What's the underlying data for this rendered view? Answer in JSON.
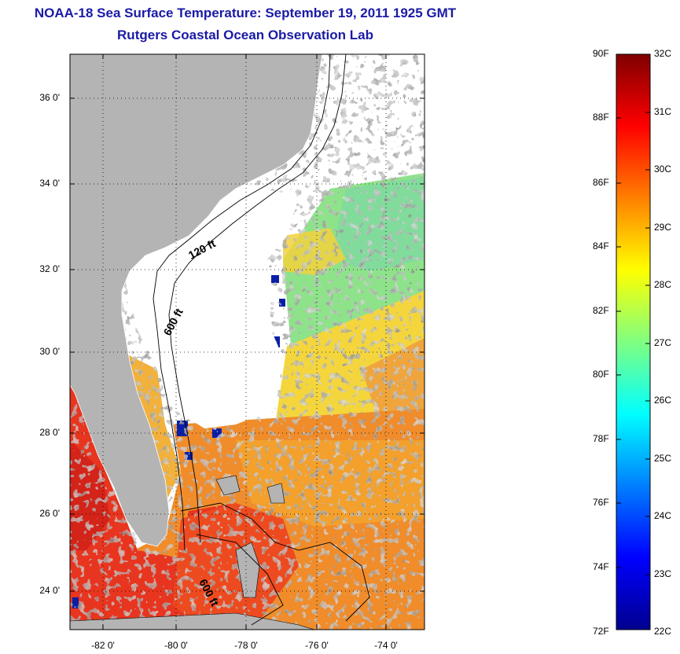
{
  "title": {
    "line1": "NOAA-18 Sea Surface Temperature:  September 19, 2011 1925 GMT",
    "line2": "Rutgers Coastal Ocean Observation Lab"
  },
  "map": {
    "lat_ticks": [
      "36 0'",
      "34 0'",
      "32 0'",
      "30 0'",
      "28 0'",
      "26 0'",
      "24 0'"
    ],
    "lon_ticks": [
      "-82 0'",
      "-80 0'",
      "-78 0'",
      "-76 0'",
      "-74 0'"
    ],
    "isobath_labels": [
      "120 ft",
      "600 ft",
      "600 ft"
    ],
    "land_color": "#b4b4b4",
    "cloud_color": "#ffffff"
  },
  "colorbar": {
    "fahrenheit_ticks": [
      "90F",
      "88F",
      "86F",
      "84F",
      "82F",
      "80F",
      "78F",
      "76F",
      "74F",
      "72F"
    ],
    "celsius_ticks": [
      "32C",
      "31C",
      "30C",
      "29C",
      "28C",
      "27C",
      "26C",
      "25C",
      "24C",
      "23C",
      "22C"
    ],
    "range_c": [
      22,
      32
    ],
    "colormap": "jet"
  }
}
